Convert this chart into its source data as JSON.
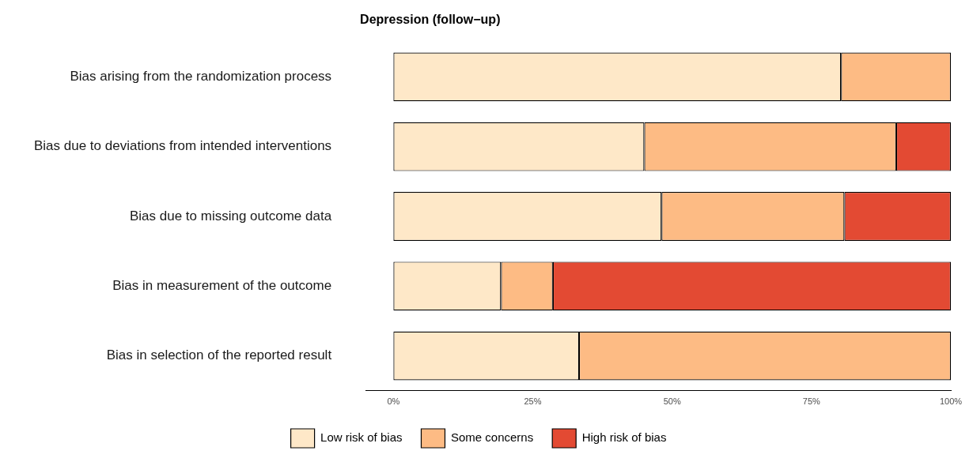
{
  "chart_data": {
    "type": "bar",
    "orientation": "horizontal",
    "stacked": true,
    "title": "Depression (follow−up)",
    "categories": [
      "Bias arising from the randomization process",
      "Bias due to deviations from intended interventions",
      "Bias due to missing outcome data",
      "Bias in measurement of the outcome",
      "Bias in selection of the reported result"
    ],
    "series": [
      {
        "name": "Low risk of bias",
        "color": "#fee8c8",
        "values": [
          80.3,
          45.0,
          48.1,
          19.3,
          33.3
        ]
      },
      {
        "name": "Some concerns",
        "color": "#fdbb84",
        "values": [
          19.7,
          45.2,
          32.8,
          9.3,
          66.7
        ]
      },
      {
        "name": "High risk of bias",
        "color": "#e34a33",
        "values": [
          0,
          9.8,
          19.1,
          71.4,
          0
        ]
      }
    ],
    "xlim": [
      -5,
      100
    ],
    "xticks": [
      {
        "value": 0,
        "label": "0%"
      },
      {
        "value": 25,
        "label": "25%"
      },
      {
        "value": 50,
        "label": "50%"
      },
      {
        "value": 75,
        "label": "75%"
      },
      {
        "value": 100,
        "label": "100%"
      }
    ],
    "grid": false,
    "legend": "bottom"
  }
}
